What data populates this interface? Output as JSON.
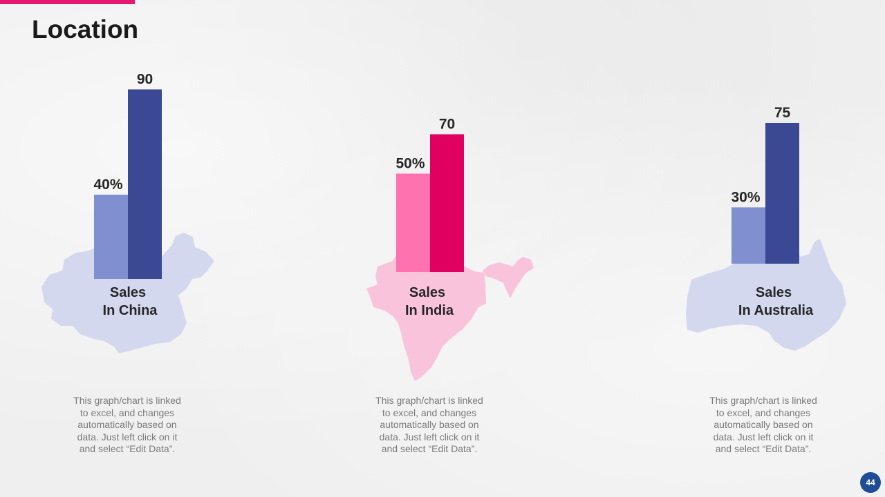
{
  "slide": {
    "title": "Location",
    "page_number": "44",
    "accent_color": "#e6186f"
  },
  "chart_data": [
    {
      "type": "bar",
      "region": "China",
      "region_label": [
        "Sales",
        "In China"
      ],
      "map_color": "#d3d8ee",
      "values": [
        {
          "value": 40,
          "label": "40%",
          "color": "#7f8fcf"
        },
        {
          "value": 90,
          "label": "90",
          "color": "#3b4893"
        }
      ],
      "note": [
        "This graph/chart is linked",
        "to excel, and changes",
        "automatically based on",
        "data. Just left click on it",
        "and select “Edit Data”."
      ]
    },
    {
      "type": "bar",
      "region": "India",
      "region_label": [
        "Sales",
        "In India"
      ],
      "map_color": "#f9c3dc",
      "values": [
        {
          "value": 50,
          "label": "50%",
          "color": "#ff72b0"
        },
        {
          "value": 70,
          "label": "70",
          "color": "#e0005f"
        }
      ],
      "note": [
        "This graph/chart is linked",
        "to excel, and changes",
        "automatically based on",
        "data. Just left click on it",
        "and select “Edit Data”."
      ]
    },
    {
      "type": "bar",
      "region": "Australia",
      "region_label": [
        "Sales",
        "In Australia"
      ],
      "map_color": "#d3d8ee",
      "values": [
        {
          "value": 30,
          "label": "30%",
          "color": "#7f8fcf"
        },
        {
          "value": 75,
          "label": "75",
          "color": "#3b4893"
        }
      ],
      "note": [
        "This graph/chart is linked",
        "to excel, and changes",
        "automatically based on",
        "data. Just left click on it",
        "and select “Edit Data”."
      ]
    }
  ]
}
